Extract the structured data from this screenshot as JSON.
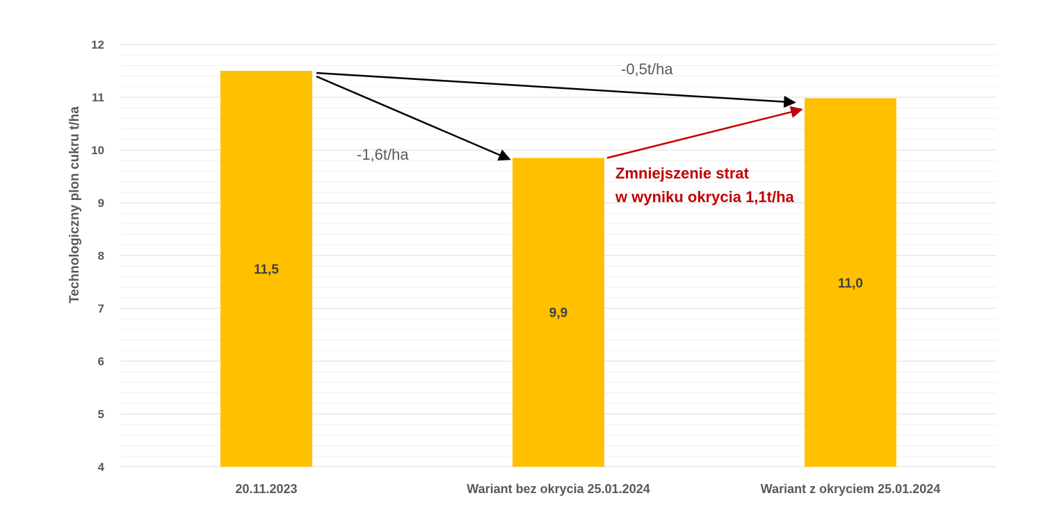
{
  "chart_data": {
    "type": "bar",
    "categories": [
      "20.11.2023",
      "Wariant bez okrycia 25.01.2024",
      "Wariant z okryciem 25.01.2024"
    ],
    "values": [
      11.5,
      9.85,
      10.98
    ],
    "data_labels": [
      "11,5",
      "9,9",
      "11,0"
    ],
    "ylabel": "Technologiczny plon cukru t/ha",
    "ylim": [
      4,
      12
    ],
    "yticks": [
      4,
      5,
      6,
      7,
      8,
      9,
      10,
      11,
      12
    ],
    "grid": true,
    "legend": "none",
    "colors": {
      "bar": "#FFC000",
      "arrow": "#000000",
      "arrow_red": "#C00000",
      "grid": "#D9D9D9",
      "grid_minor": "#EFEFEF"
    },
    "annotations": {
      "loss_a": "-0,5t/ha",
      "loss_b": "-1,6t/ha",
      "reduction_line1": "Zmniejszenie strat",
      "reduction_line2": "w wyniku okrycia 1,1t/ha"
    }
  }
}
